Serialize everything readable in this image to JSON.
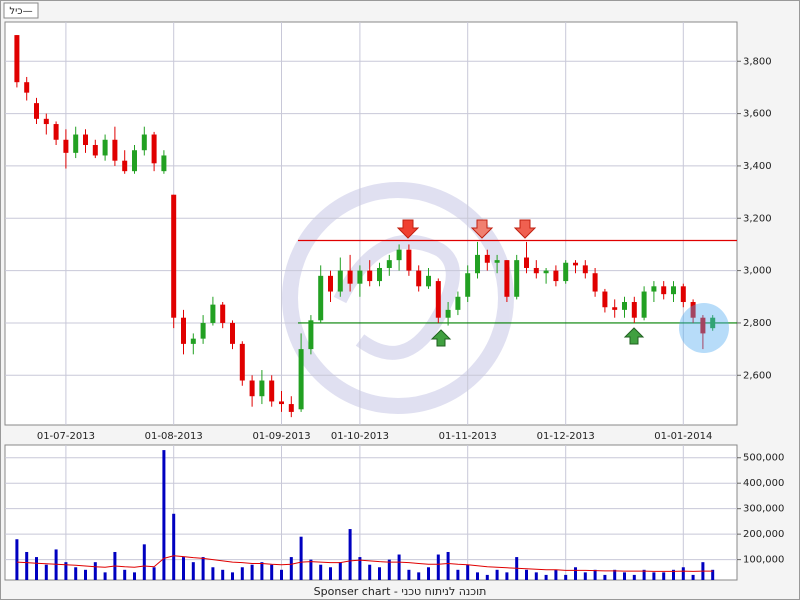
{
  "toolbar": {
    "label": "כיל—"
  },
  "footer": "Sponser chart - תוכנה לניתוח טכני",
  "chart_data": [
    {
      "type": "candlestick",
      "categories": [
        null,
        null,
        null,
        null,
        null,
        "01-07-2013",
        null,
        null,
        null,
        null,
        null,
        null,
        null,
        null,
        null,
        null,
        "01-08-2013",
        null,
        null,
        null,
        null,
        null,
        null,
        null,
        null,
        null,
        null,
        "01-09-2013",
        null,
        null,
        null,
        null,
        null,
        null,
        null,
        "01-10-2013",
        null,
        null,
        null,
        null,
        null,
        null,
        null,
        null,
        null,
        null,
        "01-11-2013",
        null,
        null,
        null,
        null,
        null,
        null,
        null,
        null,
        null,
        "01-12-2013",
        null,
        null,
        null,
        null,
        null,
        null,
        null,
        null,
        null,
        null,
        null,
        "01-01-2014",
        null,
        null,
        null
      ],
      "open": [
        3900,
        3720,
        3640,
        3580,
        3560,
        3500,
        3450,
        3520,
        3480,
        3440,
        3500,
        3420,
        3380,
        3460,
        3520,
        3380,
        3290,
        2820,
        2720,
        2740,
        2800,
        2870,
        2800,
        2720,
        2580,
        2520,
        2580,
        2500,
        2490,
        2470,
        2700,
        2810,
        2980,
        2920,
        3000,
        2950,
        3000,
        2960,
        3010,
        3040,
        3080,
        3000,
        2940,
        2960,
        2820,
        2850,
        2900,
        2990,
        3060,
        3030,
        3040,
        2900,
        3050,
        3010,
        2990,
        3000,
        2960,
        3030,
        3020,
        2990,
        2920,
        2860,
        2850,
        2880,
        2820,
        2920,
        2940,
        2910,
        2940,
        2880,
        2820,
        2780
      ],
      "high": [
        3900,
        3740,
        3660,
        3600,
        3570,
        3540,
        3550,
        3540,
        3500,
        3520,
        3550,
        3460,
        3480,
        3550,
        3530,
        3460,
        3290,
        2850,
        2760,
        2830,
        2900,
        2880,
        2810,
        2730,
        2600,
        2620,
        2600,
        2540,
        2520,
        2760,
        2830,
        3020,
        3000,
        3050,
        3060,
        3020,
        3040,
        3030,
        3060,
        3100,
        3100,
        3020,
        3010,
        2970,
        2880,
        2920,
        3020,
        3110,
        3080,
        3060,
        3040,
        3060,
        3110,
        3040,
        3010,
        3020,
        3040,
        3040,
        3040,
        3010,
        2930,
        2890,
        2900,
        2900,
        2940,
        2960,
        2960,
        2960,
        2950,
        2890,
        2830,
        2830
      ],
      "low": [
        3700,
        3650,
        3560,
        3520,
        3480,
        3390,
        3430,
        3450,
        3430,
        3420,
        3400,
        3370,
        3370,
        3440,
        3380,
        3370,
        2780,
        2680,
        2680,
        2720,
        2790,
        2780,
        2700,
        2560,
        2480,
        2490,
        2480,
        2460,
        2440,
        2460,
        2680,
        2800,
        2880,
        2900,
        2920,
        2900,
        2940,
        2940,
        2980,
        3000,
        2980,
        2920,
        2930,
        2800,
        2790,
        2830,
        2880,
        2970,
        3000,
        2990,
        2880,
        2890,
        2990,
        2970,
        2950,
        2940,
        2950,
        2990,
        2970,
        2900,
        2840,
        2820,
        2820,
        2800,
        2810,
        2880,
        2890,
        2880,
        2860,
        2800,
        2700,
        2770
      ],
      "close": [
        3720,
        3680,
        3580,
        3560,
        3500,
        3450,
        3520,
        3480,
        3440,
        3500,
        3420,
        3380,
        3460,
        3520,
        3410,
        3440,
        2820,
        2720,
        2740,
        2800,
        2870,
        2800,
        2720,
        2580,
        2520,
        2580,
        2500,
        2490,
        2460,
        2700,
        2810,
        2980,
        2920,
        3000,
        2950,
        3000,
        2960,
        3010,
        3040,
        3080,
        3000,
        2940,
        2980,
        2820,
        2850,
        2900,
        2990,
        3060,
        3030,
        3040,
        2900,
        3040,
        3010,
        2990,
        3000,
        2960,
        3030,
        3020,
        2990,
        2920,
        2860,
        2850,
        2880,
        2820,
        2920,
        2940,
        2910,
        2940,
        2880,
        2820,
        2760,
        2820
      ],
      "up_color": "#22a022",
      "down_color": "#e00000",
      "ylim": [
        2410,
        3950
      ],
      "yticks": [
        {
          "value": 2600,
          "label": "2,600"
        },
        {
          "value": 2800,
          "label": "2,800"
        },
        {
          "value": 3000,
          "label": "3,000"
        },
        {
          "value": 3200,
          "label": "3,200"
        },
        {
          "value": 3400,
          "label": "3,400"
        },
        {
          "value": 3600,
          "label": "3,600"
        },
        {
          "value": 3800,
          "label": "3,800"
        }
      ],
      "grid": true,
      "levels": [
        {
          "value": 3115,
          "color": "#e00000"
        },
        {
          "value": 2800,
          "color": "#008000"
        }
      ]
    },
    {
      "type": "bar",
      "values": [
        180000,
        130000,
        110000,
        80000,
        140000,
        90000,
        70000,
        60000,
        90000,
        50000,
        130000,
        60000,
        50000,
        160000,
        70000,
        530000,
        280000,
        110000,
        90000,
        110000,
        70000,
        60000,
        50000,
        70000,
        80000,
        90000,
        80000,
        60000,
        110000,
        190000,
        100000,
        80000,
        70000,
        90000,
        220000,
        110000,
        80000,
        70000,
        100000,
        120000,
        60000,
        50000,
        70000,
        120000,
        130000,
        60000,
        80000,
        50000,
        40000,
        60000,
        50000,
        110000,
        60000,
        50000,
        40000,
        60000,
        40000,
        70000,
        50000,
        60000,
        40000,
        60000,
        50000,
        40000,
        60000,
        50000,
        50000,
        60000,
        70000,
        40000,
        90000,
        60000
      ],
      "color": "#0000c0",
      "average": {
        "color": "#e00000",
        "values": [
          90000,
          88000,
          86000,
          84000,
          82000,
          80000,
          78000,
          75000,
          72000,
          70000,
          75000,
          72000,
          70000,
          75000,
          72000,
          105000,
          115000,
          112000,
          108000,
          105000,
          100000,
          95000,
          90000,
          88000,
          85000,
          85000,
          82000,
          80000,
          82000,
          90000,
          92000,
          90000,
          88000,
          88000,
          95000,
          98000,
          95000,
          92000,
          90000,
          90000,
          88000,
          85000,
          82000,
          82000,
          85000,
          82000,
          80000,
          76000,
          72000,
          70000,
          68000,
          66000,
          64000,
          62000,
          60000,
          60000,
          58000,
          58000,
          58000,
          57000,
          56000,
          56000,
          55000,
          55000,
          55000,
          54000,
          54000,
          54000,
          55000,
          54000,
          55000,
          55000
        ]
      },
      "ylim": [
        20000,
        550000
      ],
      "yticks": [
        {
          "value": 100000,
          "label": "100,000"
        },
        {
          "value": 200000,
          "label": "200,000"
        },
        {
          "value": 300000,
          "label": "300,000"
        },
        {
          "value": 400000,
          "label": "400,000"
        },
        {
          "value": 500000,
          "label": "500,000"
        }
      ],
      "grid": true
    }
  ]
}
